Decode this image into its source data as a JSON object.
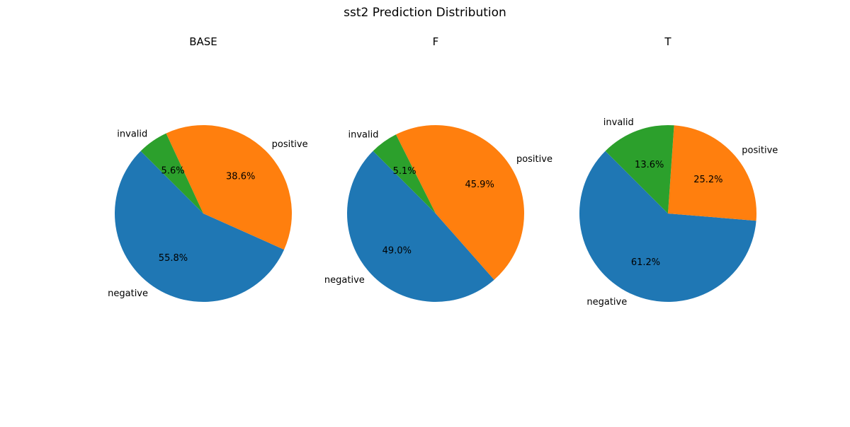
{
  "title": "sst2 Prediction Distribution",
  "colors": {
    "negative": "#1f77b4",
    "positive": "#ff7f0e",
    "invalid": "#2ca02c"
  },
  "chart_data": [
    {
      "type": "pie",
      "title": "BASE",
      "labels": [
        "negative",
        "positive",
        "invalid"
      ],
      "values": [
        55.8,
        38.6,
        5.6
      ],
      "value_labels": [
        "55.8%",
        "38.6%",
        "5.6%"
      ],
      "start_angle_deg": 135
    },
    {
      "type": "pie",
      "title": "F",
      "labels": [
        "negative",
        "positive",
        "invalid"
      ],
      "values": [
        49.0,
        45.9,
        5.1
      ],
      "value_labels": [
        "49.0%",
        "45.9%",
        "5.1%"
      ],
      "start_angle_deg": 135
    },
    {
      "type": "pie",
      "title": "T",
      "labels": [
        "negative",
        "positive",
        "invalid"
      ],
      "values": [
        61.2,
        25.2,
        13.6
      ],
      "value_labels": [
        "61.2%",
        "25.2%",
        "13.6%"
      ],
      "start_angle_deg": 135
    }
  ]
}
